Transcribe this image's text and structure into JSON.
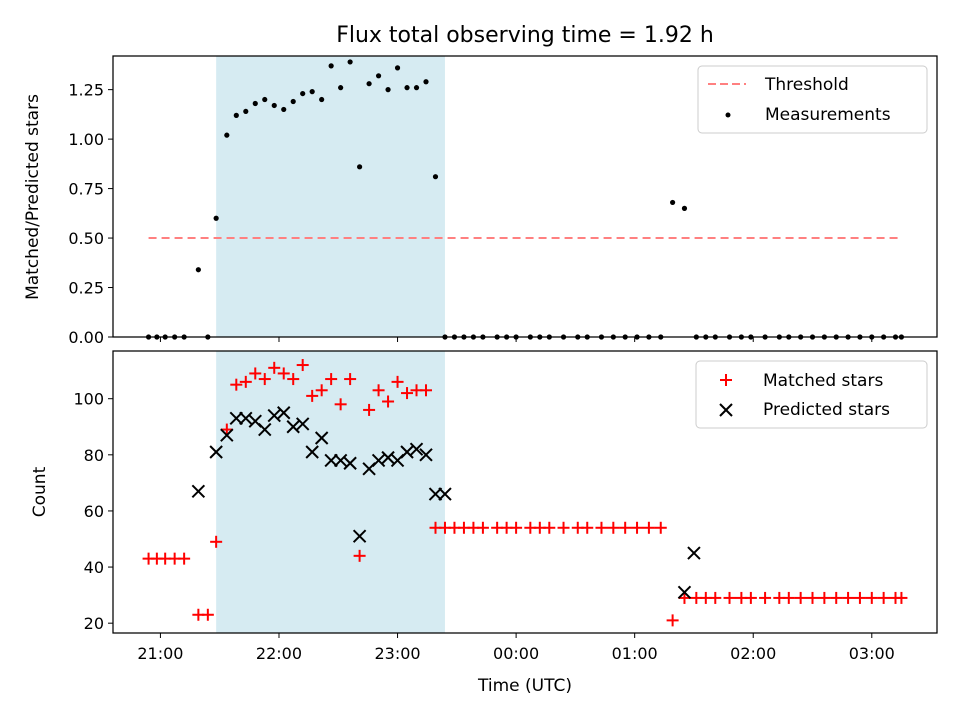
{
  "figure": {
    "title": "Flux total observing time = 1.92 h"
  },
  "chart_data": [
    {
      "type": "scatter",
      "ylabel": "Matched/Predicted stars",
      "ylim": [
        0.0,
        1.42
      ],
      "yticks": [
        0.0,
        0.25,
        0.5,
        0.75,
        1.0,
        1.25
      ],
      "ytick_labels": [
        "0.00",
        "0.25",
        "0.50",
        "0.75",
        "1.00",
        "1.25"
      ],
      "x_axis": "time (hours after 21:00 UTC)",
      "xlim": [
        -0.4,
        6.55
      ],
      "highlight_span": [
        0.47,
        2.4
      ],
      "highlight_color": "#add8e6",
      "legend_position": "upper right",
      "series": [
        {
          "name": "Threshold",
          "kind": "line",
          "style": "dashed",
          "color": "#ff8080",
          "x": [
            -0.1,
            6.25
          ],
          "y": [
            0.5,
            0.5
          ]
        },
        {
          "name": "Measurements",
          "kind": "points",
          "color": "#000000",
          "x": [
            -0.1,
            -0.03,
            0.04,
            0.12,
            0.2,
            0.32,
            0.4,
            0.47,
            0.56,
            0.64,
            0.72,
            0.8,
            0.88,
            0.96,
            1.04,
            1.12,
            1.2,
            1.28,
            1.36,
            1.44,
            1.52,
            1.6,
            1.68,
            1.76,
            1.84,
            1.92,
            2.0,
            2.08,
            2.16,
            2.24,
            2.32,
            2.4,
            2.48,
            2.56,
            2.64,
            2.72,
            2.84,
            2.92,
            3.0,
            3.12,
            3.2,
            3.28,
            3.4,
            3.52,
            3.6,
            3.72,
            3.82,
            3.92,
            4.02,
            4.12,
            4.22,
            4.32,
            4.42,
            4.52,
            4.6,
            4.68,
            4.8,
            4.9,
            4.98,
            5.1,
            5.22,
            5.3,
            5.4,
            5.5,
            5.6,
            5.7,
            5.8,
            5.9,
            6.0,
            6.1,
            6.2,
            6.25
          ],
          "y": [
            0,
            0,
            0,
            0,
            0,
            0.34,
            0,
            0.6,
            1.02,
            1.12,
            1.14,
            1.18,
            1.2,
            1.17,
            1.15,
            1.19,
            1.23,
            1.24,
            1.2,
            1.37,
            1.26,
            1.39,
            0.86,
            1.28,
            1.32,
            1.25,
            1.36,
            1.26,
            1.26,
            1.29,
            0.81,
            0,
            0,
            0,
            0,
            0,
            0,
            0,
            0,
            0,
            0,
            0,
            0,
            0,
            0,
            0,
            0,
            0,
            0,
            0,
            0,
            0.68,
            0.65,
            0,
            0,
            0,
            0,
            0,
            0,
            0,
            0,
            0,
            0,
            0,
            0,
            0,
            0,
            0,
            0,
            0,
            0,
            0
          ]
        }
      ]
    },
    {
      "type": "scatter",
      "ylabel": "Count",
      "xlabel": "Time (UTC)",
      "ylim": [
        16.5,
        117
      ],
      "yticks": [
        20,
        40,
        60,
        80,
        100
      ],
      "ytick_labels": [
        "20",
        "40",
        "60",
        "80",
        "100"
      ],
      "x_axis": "time (hours after 21:00 UTC)",
      "xlim": [
        -0.4,
        6.55
      ],
      "xticks": [
        0,
        1,
        2,
        3,
        4,
        5,
        6
      ],
      "xtick_labels": [
        "21:00",
        "22:00",
        "23:00",
        "00:00",
        "01:00",
        "02:00",
        "03:00"
      ],
      "highlight_span": [
        0.47,
        2.4
      ],
      "highlight_color": "#add8e6",
      "legend_position": "upper right",
      "series": [
        {
          "name": "Matched stars",
          "marker": "plus",
          "color": "#ff0000",
          "x": [
            -0.1,
            -0.03,
            0.04,
            0.12,
            0.2,
            0.32,
            0.4,
            0.47,
            0.56,
            0.64,
            0.72,
            0.8,
            0.88,
            0.96,
            1.04,
            1.12,
            1.2,
            1.28,
            1.36,
            1.44,
            1.52,
            1.6,
            1.68,
            1.76,
            1.84,
            1.92,
            2.0,
            2.08,
            2.16,
            2.24,
            2.32,
            2.4,
            2.48,
            2.56,
            2.64,
            2.72,
            2.84,
            2.92,
            3.0,
            3.12,
            3.2,
            3.28,
            3.4,
            3.52,
            3.6,
            3.72,
            3.82,
            3.92,
            4.02,
            4.12,
            4.22,
            4.32,
            4.42,
            4.52,
            4.6,
            4.68,
            4.8,
            4.9,
            4.98,
            5.1,
            5.22,
            5.3,
            5.4,
            5.5,
            5.6,
            5.7,
            5.8,
            5.9,
            6.0,
            6.1,
            6.2,
            6.25
          ],
          "y": [
            43,
            43,
            43,
            43,
            43,
            23,
            23,
            49,
            89,
            105,
            106,
            109,
            107,
            111,
            109,
            107,
            112,
            101,
            103,
            107,
            98,
            107,
            44,
            96,
            103,
            99,
            106,
            102,
            103,
            103,
            54,
            54,
            54,
            54,
            54,
            54,
            54,
            54,
            54,
            54,
            54,
            54,
            54,
            54,
            54,
            54,
            54,
            54,
            54,
            54,
            54,
            21,
            29,
            29,
            29,
            29,
            29,
            29,
            29,
            29,
            29,
            29,
            29,
            29,
            29,
            29,
            29,
            29,
            29,
            29,
            29,
            29
          ]
        },
        {
          "name": "Predicted stars",
          "marker": "x",
          "color": "#000000",
          "x": [
            0.32,
            0.47,
            0.56,
            0.64,
            0.72,
            0.8,
            0.88,
            0.96,
            1.04,
            1.12,
            1.2,
            1.28,
            1.36,
            1.44,
            1.52,
            1.6,
            1.68,
            1.76,
            1.84,
            1.92,
            2.0,
            2.08,
            2.16,
            2.24,
            2.32,
            2.4,
            4.42,
            4.5
          ],
          "y": [
            67,
            81,
            87,
            93,
            93,
            92,
            89,
            94,
            95,
            90,
            91,
            81,
            86,
            78,
            78,
            77,
            51,
            75,
            78,
            79,
            78,
            81,
            82,
            80,
            66,
            66,
            31,
            45
          ]
        }
      ]
    }
  ]
}
